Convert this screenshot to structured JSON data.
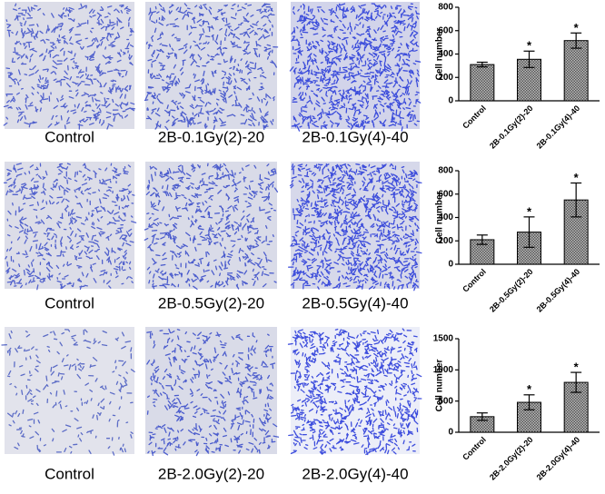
{
  "images": [
    {
      "label": "Control"
    },
    {
      "label": "2B-0.1Gy(2)-20"
    },
    {
      "label": "2B-0.1Gy(4)-40"
    },
    {
      "label": "Control"
    },
    {
      "label": "2B-0.5Gy(2)-20"
    },
    {
      "label": "2B-0.5Gy(4)-40"
    },
    {
      "label": "Control"
    },
    {
      "label": "2B-2.0Gy(2)-20"
    },
    {
      "label": "2B-2.0Gy(4)-40"
    }
  ],
  "chart_data": [
    {
      "type": "bar",
      "y_label": "Cell number",
      "categories": [
        "Control",
        "2B-0.1Gy(2)-20",
        "2B-0.1Gy(4)-40"
      ],
      "values": [
        310,
        355,
        515
      ],
      "errors": [
        20,
        70,
        65
      ],
      "markers": [
        null,
        "*",
        "*"
      ],
      "ylim": [
        0,
        800
      ],
      "yticks": [
        0,
        200,
        400,
        600,
        800
      ],
      "color": "#888888"
    },
    {
      "type": "bar",
      "y_label": "Cell number",
      "categories": [
        "Control",
        "2B-0.5Gy(2)-20",
        "2B-0.5Gy(4)-40"
      ],
      "values": [
        210,
        275,
        550
      ],
      "errors": [
        40,
        130,
        145
      ],
      "markers": [
        null,
        "*",
        "*"
      ],
      "ylim": [
        0,
        800
      ],
      "yticks": [
        0,
        200,
        400,
        600,
        800
      ],
      "color": "#888888"
    },
    {
      "type": "bar",
      "y_label": "Cell number",
      "categories": [
        "Control",
        "2B-2.0Gy(2)-20",
        "2B-2.0Gy(4)-40"
      ],
      "values": [
        250,
        480,
        800
      ],
      "errors": [
        60,
        120,
        160
      ],
      "markers": [
        null,
        "*",
        "*"
      ],
      "ylim": [
        0,
        1500
      ],
      "yticks": [
        0,
        500,
        1000,
        1500
      ],
      "color": "#888888"
    }
  ]
}
